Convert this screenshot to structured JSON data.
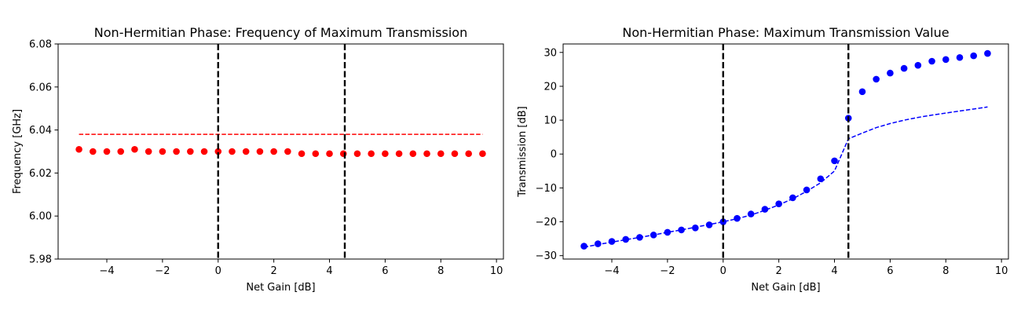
{
  "chart_data": [
    {
      "type": "scatter",
      "title": "Non-Hermitian Phase: Frequency of Maximum Transmission",
      "xlabel": "Net Gain [dB]",
      "ylabel": "Frequency [GHz]",
      "xlim": [
        -5.75,
        10.25
      ],
      "ylim": [
        5.98,
        6.08
      ],
      "xticks": [
        -4,
        -2,
        0,
        2,
        4,
        6,
        8,
        10
      ],
      "yticks": [
        5.98,
        6.0,
        6.02,
        6.04,
        6.06,
        6.08
      ],
      "yticklabels": [
        "5.98",
        "6.00",
        "6.02",
        "6.04",
        "6.06",
        "6.08"
      ],
      "grid": false,
      "vlines": [
        0,
        4.55
      ],
      "series": [
        {
          "style": "markers",
          "color": "#ff0000",
          "x": [
            -5,
            -4.5,
            -4,
            -3.5,
            -3,
            -2.5,
            -2,
            -1.5,
            -1,
            -0.5,
            0,
            0.5,
            1,
            1.5,
            2,
            2.5,
            3,
            3.5,
            4,
            4.5,
            5,
            5.5,
            6,
            6.5,
            7,
            7.5,
            8,
            8.5,
            9,
            9.5
          ],
          "y": [
            6.031,
            6.03,
            6.03,
            6.03,
            6.031,
            6.03,
            6.03,
            6.03,
            6.03,
            6.03,
            6.03,
            6.03,
            6.03,
            6.03,
            6.03,
            6.03,
            6.029,
            6.029,
            6.029,
            6.029,
            6.029,
            6.029,
            6.029,
            6.029,
            6.029,
            6.029,
            6.029,
            6.029,
            6.029,
            6.029
          ]
        },
        {
          "style": "dashed",
          "color": "#ff0000",
          "x": [
            -5,
            9.5
          ],
          "y": [
            6.038,
            6.038
          ]
        }
      ]
    },
    {
      "type": "scatter",
      "title": "Non-Hermitian Phase: Maximum Transmission Value",
      "xlabel": "Net Gain [dB]",
      "ylabel": "Transmission [dB]",
      "xlim": [
        -5.75,
        10.25
      ],
      "ylim": [
        -31,
        32.5
      ],
      "xticks": [
        -4,
        -2,
        0,
        2,
        4,
        6,
        8,
        10
      ],
      "yticks": [
        -30,
        -20,
        -10,
        0,
        10,
        20,
        30
      ],
      "grid": false,
      "vlines": [
        0,
        4.5
      ],
      "series": [
        {
          "style": "markers",
          "color": "#0000ff",
          "x": [
            -5,
            -4.5,
            -4,
            -3.5,
            -3,
            -2.5,
            -2,
            -1.5,
            -1,
            -0.5,
            0,
            0.5,
            1,
            1.5,
            2,
            2.5,
            3,
            3.5,
            4,
            4.5,
            5,
            5.5,
            6,
            6.5,
            7,
            7.5,
            8,
            8.5,
            9,
            9.5
          ],
          "y": [
            -27.2,
            -26.5,
            -25.8,
            -25.2,
            -24.6,
            -23.9,
            -23.1,
            -22.4,
            -21.8,
            -20.9,
            -20.0,
            -19.0,
            -17.7,
            -16.3,
            -14.7,
            -12.9,
            -10.6,
            -7.3,
            -2.0,
            10.6,
            18.4,
            22.1,
            23.9,
            25.3,
            26.2,
            27.4,
            27.9,
            28.5,
            29.0,
            29.7
          ]
        },
        {
          "style": "dashed",
          "color": "#0000ff",
          "x": [
            -5,
            -4.5,
            -4,
            -3.5,
            -3,
            -2.5,
            -2,
            -1.5,
            -1,
            -0.5,
            0,
            0.5,
            1,
            1.5,
            2,
            2.5,
            3,
            3.5,
            4,
            4.5,
            5,
            5.5,
            6,
            6.5,
            7,
            7.5,
            8,
            8.5,
            9,
            9.5
          ],
          "y": [
            -27.5,
            -26.7,
            -26.0,
            -25.3,
            -24.6,
            -23.9,
            -23.1,
            -22.4,
            -21.6,
            -20.8,
            -20.0,
            -19.1,
            -18.0,
            -16.6,
            -15.0,
            -13.2,
            -11.0,
            -8.5,
            -5.0,
            4.5,
            6.2,
            7.8,
            9.0,
            10.0,
            10.8,
            11.5,
            12.1,
            12.7,
            13.3,
            13.9
          ]
        }
      ]
    }
  ]
}
